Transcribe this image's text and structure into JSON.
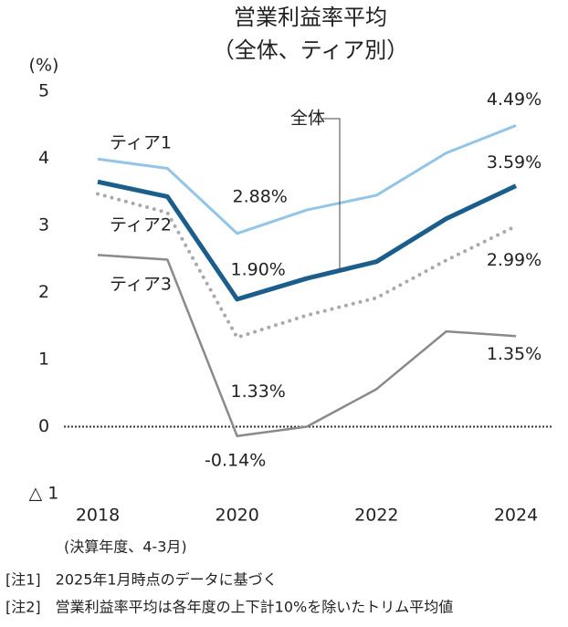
{
  "chart_data": {
    "type": "line",
    "title": "営業利益率平均",
    "subtitle": "（全体、ティア別）",
    "y_label": "(%)",
    "x_note": "(決算年度、4-3月)",
    "notes": [
      "[注1]　2025年1月時点のデータに基づく",
      "[注2]　営業利益率平均は各年度の上下計10%を除いたトリム平均値"
    ],
    "x": [
      2018,
      2019,
      2020,
      2021,
      2022,
      2023,
      2024
    ],
    "xlim": [
      2018,
      2024
    ],
    "xticks": [
      2018,
      2020,
      2022,
      2024
    ],
    "ylim": [
      -1,
      5
    ],
    "yticks": [
      5,
      4,
      3,
      2,
      1,
      0,
      {
        "value": -1,
        "label": "△ 1"
      }
    ],
    "series": [
      {
        "name": "ティア1",
        "color": "#92c5e6",
        "style": "solid",
        "width": 3,
        "values": [
          3.99,
          3.85,
          2.88,
          3.23,
          3.45,
          4.08,
          4.49
        ],
        "value_labels": [
          null,
          null,
          "2.88%",
          null,
          null,
          null,
          "4.49%"
        ]
      },
      {
        "name": "全体",
        "color": "#1b5e8c",
        "style": "solid",
        "width": 5,
        "values": [
          3.65,
          3.43,
          1.9,
          2.21,
          2.46,
          3.1,
          3.59
        ],
        "value_labels": [
          null,
          null,
          "1.90%",
          null,
          null,
          null,
          "3.59%"
        ]
      },
      {
        "name": "ティア2",
        "color": "#aaaaaa",
        "style": "dotted",
        "width": 4,
        "values": [
          3.47,
          3.19,
          1.33,
          1.66,
          1.92,
          2.48,
          2.99
        ],
        "value_labels": [
          null,
          null,
          "1.33%",
          null,
          null,
          null,
          "2.99%"
        ]
      },
      {
        "name": "ティア3",
        "color": "#8a8a8a",
        "style": "solid",
        "width": 2.5,
        "values": [
          2.56,
          2.49,
          -0.14,
          0.0,
          0.56,
          1.42,
          1.35
        ],
        "value_labels": [
          null,
          null,
          "-0.14%",
          null,
          null,
          null,
          "1.35%"
        ]
      }
    ]
  }
}
